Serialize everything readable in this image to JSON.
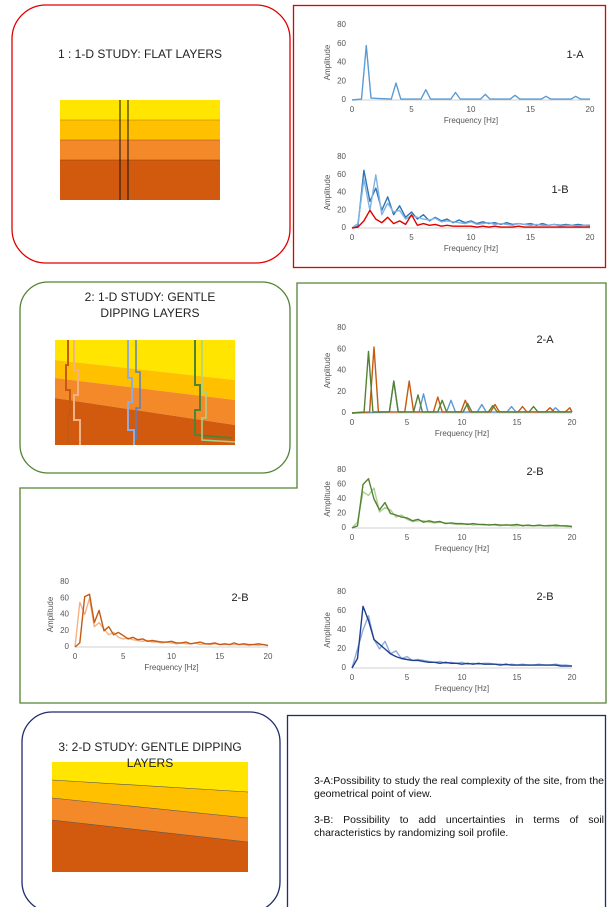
{
  "panels": [
    {
      "title_lines": [
        "1 : 1-D STUDY:  FLAT LAYERS"
      ]
    },
    {
      "title_lines": [
        "2: 1-D STUDY:  GENTLE",
        "DIPPING LAYERS"
      ]
    },
    {
      "title_lines": [
        "3: 2-D STUDY:  GENTLE DIPPING",
        "LAYERS"
      ]
    }
  ],
  "notes": [
    "3-A:Possibility to study the real complexity of the site, from the geometrical point of view.",
    "3-B: Possibility to add uncertainties in terms of soil characteristics by randomizing soil profile."
  ],
  "chart_data": [
    {
      "type": "line",
      "annotation": "1-A",
      "x_label": "Frequency [Hz]",
      "y_label": "Amplitude",
      "xlim": [
        0,
        20
      ],
      "ylim": [
        0,
        80
      ],
      "xticks": [
        0,
        5,
        10,
        15,
        20
      ],
      "yticks": [
        0,
        20,
        40,
        60,
        80
      ],
      "grid": false,
      "series": [
        {
          "color": "#5b9bd5",
          "x": [
            0,
            0.8,
            1.2,
            1.6,
            3.3,
            3.7,
            4.1,
            5.8,
            6.2,
            6.6,
            8.3,
            8.7,
            9.1,
            10.8,
            11.2,
            11.6,
            13.3,
            13.7,
            14.1,
            15.9,
            16.3,
            16.7,
            18.4,
            18.8,
            19.2,
            20
          ],
          "values": [
            0,
            1,
            58,
            2,
            1,
            18,
            1,
            1,
            11,
            1,
            1,
            8,
            1,
            1,
            6,
            1,
            1,
            5,
            1,
            1,
            4,
            1,
            1,
            4,
            1,
            1
          ]
        }
      ]
    },
    {
      "type": "line",
      "annotation": "1-B",
      "x_label": "Frequency [Hz]",
      "y_label": "Amplitude",
      "xlim": [
        0,
        20
      ],
      "ylim": [
        0,
        80
      ],
      "xticks": [
        0,
        5,
        10,
        15,
        20
      ],
      "yticks": [
        0,
        20,
        40,
        60,
        80
      ],
      "grid": false,
      "x": [
        0,
        0.5,
        1,
        1.5,
        2,
        2.5,
        3,
        3.5,
        4,
        4.5,
        5,
        5.5,
        6,
        6.5,
        7,
        7.5,
        8,
        8.5,
        9,
        9.5,
        10,
        10.5,
        11,
        11.5,
        12,
        12.5,
        13,
        13.5,
        14,
        14.5,
        15,
        15.5,
        16,
        16.5,
        17,
        17.5,
        18,
        18.5,
        19,
        19.5,
        20
      ],
      "series": [
        {
          "color": "#2e75b6",
          "values": [
            0,
            2,
            65,
            30,
            45,
            20,
            35,
            15,
            25,
            12,
            18,
            10,
            15,
            8,
            12,
            8,
            10,
            6,
            9,
            6,
            8,
            5,
            7,
            5,
            6,
            4,
            6,
            4,
            5,
            4,
            5,
            3,
            5,
            3,
            4,
            3,
            4,
            3,
            4,
            3,
            3
          ]
        },
        {
          "color": "#7fb2e0",
          "values": [
            0,
            5,
            55,
            20,
            60,
            15,
            28,
            18,
            20,
            10,
            14,
            12,
            10,
            9,
            11,
            7,
            8,
            7,
            6,
            5,
            7,
            4,
            5,
            6,
            4,
            5,
            4,
            3,
            5,
            4,
            3,
            4,
            3,
            3,
            4,
            2,
            3,
            3,
            2,
            3,
            2
          ]
        },
        {
          "color": "#e00000",
          "values": [
            0,
            1,
            8,
            20,
            10,
            6,
            12,
            5,
            8,
            4,
            15,
            3,
            5,
            3,
            4,
            2,
            3,
            2,
            2,
            2,
            2,
            1,
            2,
            1,
            2,
            1,
            1,
            1,
            2,
            1,
            1,
            1,
            1,
            1,
            1,
            1,
            1,
            1,
            1,
            1,
            1
          ]
        }
      ]
    },
    {
      "type": "line",
      "annotation": "2-A",
      "x_label": "Frequency [Hz]",
      "y_label": "Amplitude",
      "xlim": [
        0,
        20
      ],
      "ylim": [
        0,
        80
      ],
      "xticks": [
        0,
        5,
        10,
        15,
        20
      ],
      "yticks": [
        0,
        20,
        40,
        60,
        80
      ],
      "grid": false,
      "series": [
        {
          "color": "#5b9bd5",
          "x": [
            0,
            3.4,
            3.8,
            4.2,
            6.1,
            6.5,
            6.9,
            8.6,
            9,
            9.4,
            11.4,
            11.8,
            12.2,
            14.1,
            14.5,
            14.9,
            18.1,
            18.5,
            18.9,
            20
          ],
          "values": [
            0,
            1,
            30,
            1,
            1,
            18,
            1,
            1,
            12,
            1,
            1,
            8,
            1,
            1,
            6,
            1,
            1,
            5,
            1,
            1
          ]
        },
        {
          "color": "#c55a11",
          "x": [
            0,
            1.6,
            2,
            2.4,
            4.8,
            5.2,
            5.6,
            7.4,
            7.8,
            8.2,
            9.9,
            10.3,
            10.7,
            12.6,
            13,
            13.4,
            15.1,
            15.5,
            15.9,
            17.6,
            18,
            18.4,
            19.4,
            19.8,
            20
          ],
          "values": [
            0,
            1,
            62,
            1,
            1,
            30,
            1,
            1,
            15,
            1,
            1,
            12,
            1,
            1,
            8,
            1,
            1,
            6,
            1,
            1,
            5,
            1,
            1,
            5,
            1
          ]
        },
        {
          "color": "#548235",
          "x": [
            0,
            1.1,
            1.5,
            1.9,
            3.4,
            3.8,
            4.2,
            5.6,
            6,
            6.4,
            7.8,
            8.2,
            8.6,
            10.1,
            10.5,
            10.9,
            12.4,
            12.8,
            13.2,
            16.1,
            16.5,
            16.9,
            20
          ],
          "values": [
            0,
            1,
            58,
            1,
            1,
            30,
            1,
            1,
            17,
            1,
            1,
            12,
            1,
            1,
            9,
            1,
            1,
            7,
            1,
            1,
            6,
            1,
            1
          ]
        }
      ]
    },
    {
      "type": "line",
      "annotation": "2-B",
      "x_label": "Frequency [Hz]",
      "y_label": "Amplitude",
      "xlim": [
        0,
        20
      ],
      "ylim": [
        0,
        80
      ],
      "xticks": [
        0,
        5,
        10,
        15,
        20
      ],
      "yticks": [
        0,
        20,
        40,
        60,
        80
      ],
      "grid": false,
      "x": [
        0,
        0.5,
        1,
        1.5,
        2,
        2.5,
        3,
        3.5,
        4,
        4.5,
        5,
        5.5,
        6,
        6.5,
        7,
        7.5,
        8,
        8.5,
        9,
        9.5,
        10,
        10.5,
        11,
        11.5,
        12,
        12.5,
        13,
        13.5,
        14,
        14.5,
        15,
        15.5,
        16,
        16.5,
        17,
        17.5,
        18,
        18.5,
        19,
        19.5,
        20
      ],
      "series": [
        {
          "color": "#a9d18e",
          "values": [
            0,
            8,
            50,
            45,
            55,
            22,
            28,
            25,
            15,
            18,
            12,
            9,
            10,
            10,
            8,
            7,
            8,
            7,
            6,
            5,
            5,
            6,
            4,
            5,
            4,
            5,
            4,
            3,
            5,
            3,
            3,
            4,
            3,
            3,
            3,
            3,
            4,
            2,
            3,
            2,
            2
          ]
        },
        {
          "color": "#548235",
          "values": [
            0,
            3,
            60,
            68,
            40,
            25,
            35,
            20,
            18,
            15,
            14,
            10,
            12,
            8,
            10,
            8,
            9,
            6,
            7,
            6,
            6,
            5,
            6,
            5,
            5,
            4,
            5,
            4,
            4,
            4,
            5,
            3,
            4,
            3,
            4,
            3,
            3,
            4,
            3,
            3,
            2
          ]
        }
      ]
    },
    {
      "type": "line",
      "annotation": "2-B",
      "x_label": "Frequency [Hz]",
      "y_label": "Amplitude",
      "xlim": [
        0,
        20
      ],
      "ylim": [
        0,
        80
      ],
      "xticks": [
        0,
        5,
        10,
        15,
        20
      ],
      "yticks": [
        0,
        20,
        40,
        60,
        80
      ],
      "grid": false,
      "x": [
        0,
        0.5,
        1,
        1.5,
        2,
        2.5,
        3,
        3.5,
        4,
        4.5,
        5,
        5.5,
        6,
        6.5,
        7,
        7.5,
        8,
        8.5,
        9,
        9.5,
        10,
        10.5,
        11,
        11.5,
        12,
        12.5,
        13,
        13.5,
        14,
        14.5,
        15,
        15.5,
        16,
        16.5,
        17,
        17.5,
        18,
        18.5,
        19,
        19.5,
        20
      ],
      "series": [
        {
          "color": "#f4b183",
          "values": [
            0,
            55,
            40,
            60,
            25,
            30,
            22,
            15,
            18,
            12,
            10,
            11,
            9,
            8,
            7,
            8,
            6,
            6,
            5,
            6,
            5,
            4,
            5,
            4,
            4,
            5,
            3,
            4,
            3,
            4,
            3,
            3,
            3,
            3,
            3,
            3,
            2,
            3,
            2,
            3,
            2
          ]
        },
        {
          "color": "#c55a11",
          "values": [
            0,
            5,
            62,
            65,
            30,
            45,
            20,
            25,
            15,
            18,
            14,
            10,
            12,
            9,
            10,
            7,
            8,
            7,
            6,
            6,
            7,
            5,
            5,
            6,
            4,
            5,
            6,
            4,
            4,
            5,
            3,
            4,
            3,
            5,
            3,
            4,
            3,
            3,
            4,
            3,
            2
          ]
        }
      ]
    },
    {
      "type": "line",
      "annotation": "2-B",
      "x_label": "Frequency [Hz]",
      "y_label": "Amplitude",
      "xlim": [
        0,
        20
      ],
      "ylim": [
        0,
        80
      ],
      "xticks": [
        0,
        5,
        10,
        15,
        20
      ],
      "yticks": [
        0,
        20,
        40,
        60,
        80
      ],
      "grid": false,
      "x": [
        0,
        0.5,
        1,
        1.5,
        2,
        2.5,
        3,
        3.5,
        4,
        4.5,
        5,
        5.5,
        6,
        6.5,
        7,
        7.5,
        8,
        8.5,
        9,
        9.5,
        10,
        10.5,
        11,
        11.5,
        12,
        12.5,
        13,
        13.5,
        14,
        14.5,
        15,
        15.5,
        16,
        16.5,
        17,
        17.5,
        18,
        18.5,
        19,
        19.5,
        20
      ],
      "series": [
        {
          "color": "#8faadc",
          "values": [
            0,
            20,
            40,
            55,
            30,
            20,
            28,
            15,
            18,
            10,
            12,
            8,
            9,
            8,
            7,
            6,
            7,
            5,
            6,
            5,
            6,
            4,
            5,
            4,
            5,
            5,
            4,
            4,
            3,
            4,
            3,
            4,
            3,
            3,
            4,
            3,
            3,
            4,
            3,
            3,
            2
          ]
        },
        {
          "color": "#203f8f",
          "values": [
            0,
            10,
            65,
            50,
            30,
            25,
            20,
            15,
            12,
            10,
            9,
            8,
            8,
            7,
            6,
            6,
            5,
            6,
            5,
            5,
            4,
            5,
            4,
            5,
            4,
            4,
            4,
            3,
            4,
            3,
            3,
            3,
            3,
            3,
            3,
            3,
            3,
            3,
            2,
            2,
            2
          ]
        }
      ]
    }
  ]
}
